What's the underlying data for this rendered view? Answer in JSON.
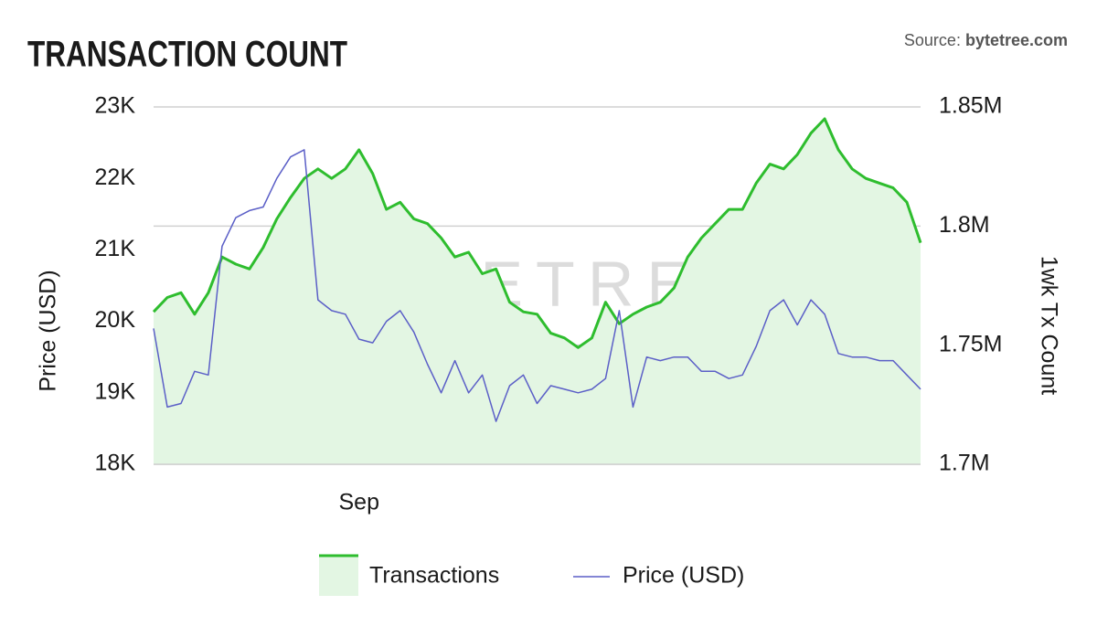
{
  "chart_data": {
    "type": "line",
    "title": "TRANSACTION COUNT",
    "source_prefix": "Source: ",
    "source_name": "bytetree.com",
    "watermark": "BYTETREE",
    "y_label": "Price (USD)",
    "y2_label": "1wk Tx Count",
    "categories": [
      null,
      null,
      null,
      null,
      null,
      null,
      null,
      null,
      null,
      null,
      null,
      null,
      null,
      null,
      null,
      "Sep",
      null,
      null,
      null,
      null,
      null,
      null,
      null,
      null,
      null,
      null,
      null,
      null,
      null,
      null,
      null,
      null,
      null,
      null,
      null,
      null,
      null,
      null,
      null,
      null,
      null,
      null,
      null,
      null,
      null,
      null,
      null,
      null,
      null,
      null,
      null,
      null,
      null,
      null,
      null,
      null,
      null
    ],
    "ylim": [
      18000,
      23000
    ],
    "yticks": [
      {
        "value": 18000,
        "label": "18K"
      },
      {
        "value": 19000,
        "label": "19K"
      },
      {
        "value": 20000,
        "label": "20K"
      },
      {
        "value": 21000,
        "label": "21K"
      },
      {
        "value": 22000,
        "label": "22K"
      },
      {
        "value": 23000,
        "label": "23K"
      }
    ],
    "y2lim": [
      1700000,
      1850000
    ],
    "y2ticks": [
      {
        "value": 1700000,
        "label": "1.7M"
      },
      {
        "value": 1750000,
        "label": "1.75M"
      },
      {
        "value": 1800000,
        "label": "1.8M"
      },
      {
        "value": 1850000,
        "label": "1.85M"
      }
    ],
    "grid": true,
    "legend": "bottom",
    "series": [
      {
        "name": "Transactions",
        "color": "#2ebd2e",
        "fill": "#e3f6e3",
        "axis": "y2",
        "values": [
          1764000,
          1770000,
          1772000,
          1763000,
          1772000,
          1787000,
          1784000,
          1782000,
          1791000,
          1803000,
          1812000,
          1820000,
          1824000,
          1820000,
          1824000,
          1832000,
          1822000,
          1807000,
          1810000,
          1803000,
          1801000,
          1795000,
          1787000,
          1789000,
          1780000,
          1782000,
          1768000,
          1764000,
          1763000,
          1755000,
          1753000,
          1749000,
          1753000,
          1768000,
          1759000,
          1763000,
          1766000,
          1768000,
          1774000,
          1787000,
          1795000,
          1801000,
          1807000,
          1807000,
          1818000,
          1826000,
          1824000,
          1830000,
          1839000,
          1845000,
          1832000,
          1824000,
          1820000,
          1818000,
          1816000,
          1810000,
          1793000
        ]
      },
      {
        "name": "Price (USD)",
        "color": "#5b5fc7",
        "axis": "y",
        "values": [
          19900,
          18800,
          18850,
          19300,
          19250,
          21050,
          21450,
          21550,
          21600,
          22000,
          22300,
          22400,
          20300,
          20150,
          20100,
          19750,
          19700,
          20000,
          20150,
          19850,
          19400,
          19000,
          19450,
          19000,
          19250,
          18600,
          19100,
          19250,
          18850,
          19100,
          19050,
          19000,
          19050,
          19200,
          20150,
          18800,
          19500,
          19450,
          19500,
          19500,
          19300,
          19300,
          19200,
          19250,
          19650,
          20150,
          20300,
          19950,
          20300,
          20100,
          19550,
          19500,
          19500,
          19450,
          19450,
          19250,
          19050
        ]
      }
    ]
  }
}
